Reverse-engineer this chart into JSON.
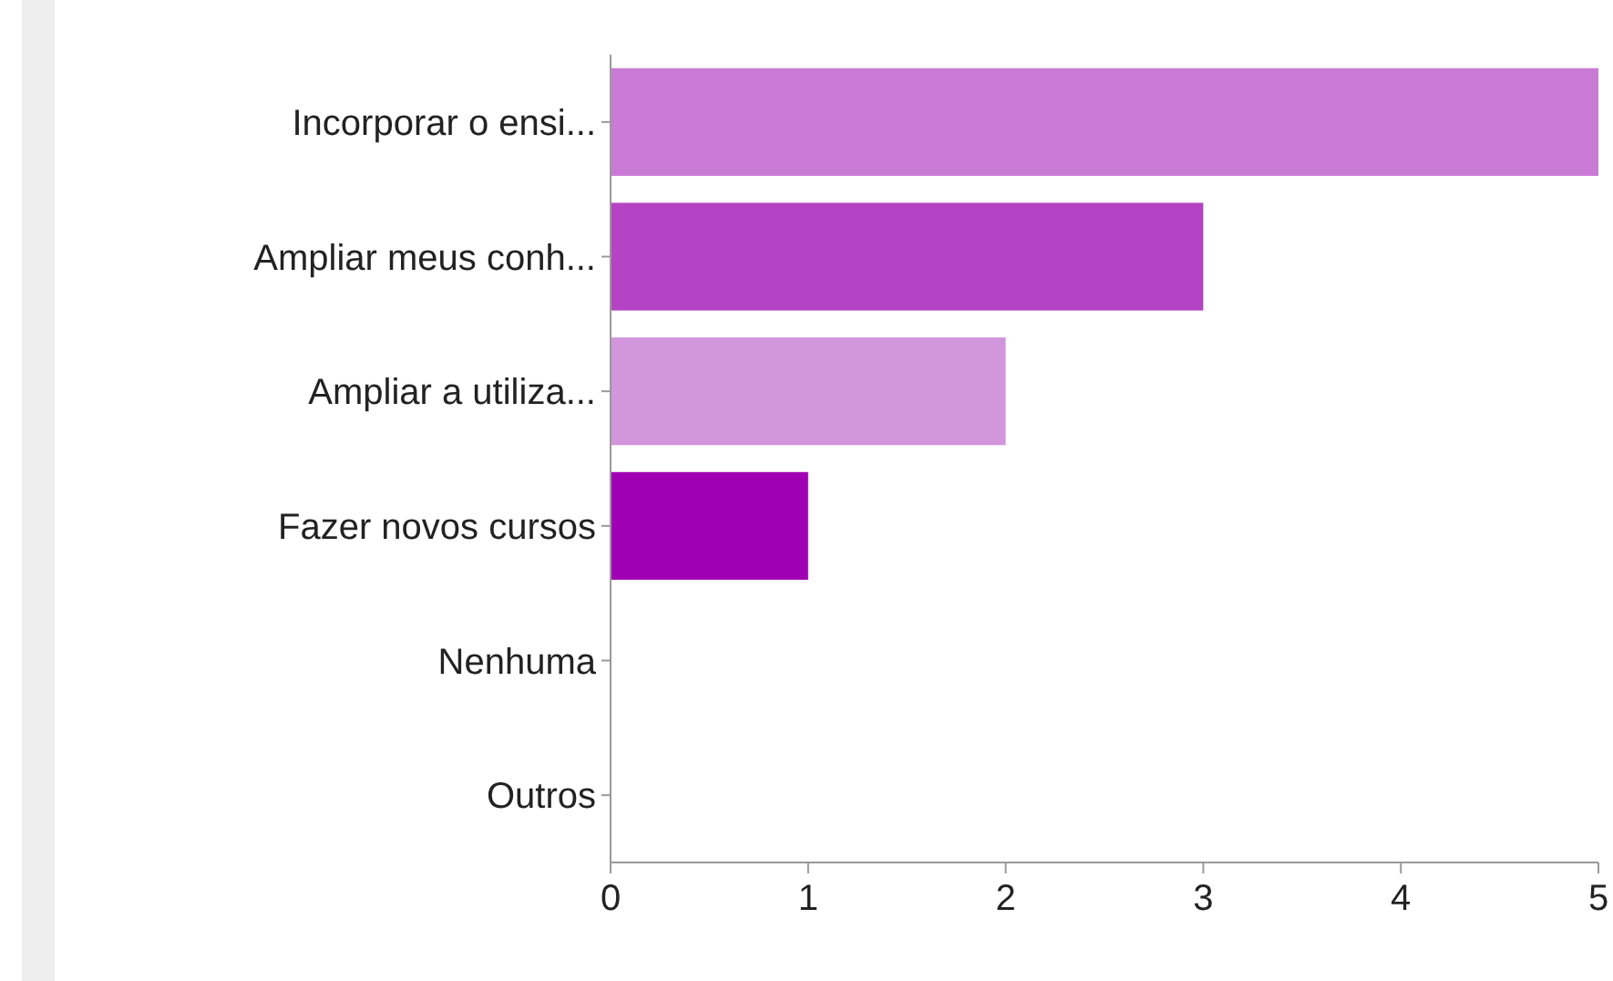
{
  "chart_data": {
    "type": "bar",
    "orientation": "horizontal",
    "categories": [
      "Incorporar o ensi...",
      "Ampliar meus conh...",
      "Ampliar a utiliza...",
      "Fazer novos cursos",
      "Nenhuma",
      "Outros"
    ],
    "values": [
      5,
      3,
      2,
      1,
      0,
      0
    ],
    "colors": [
      "#c87ad4",
      "#b444c4",
      "#d296dc",
      "#a000b4",
      "#c87ad4",
      "#b444c4"
    ],
    "xlim": [
      0,
      5
    ],
    "xticks": [
      0,
      1,
      2,
      3,
      4,
      5
    ]
  }
}
